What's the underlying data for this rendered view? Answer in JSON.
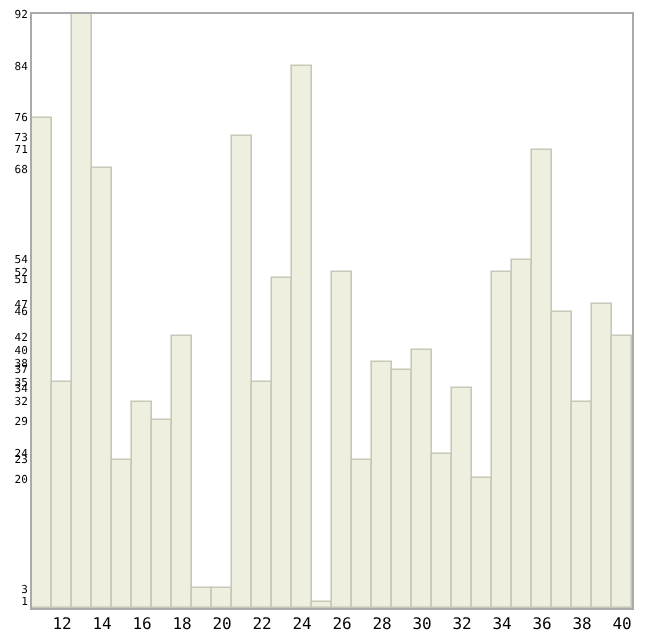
{
  "chart_data": {
    "type": "bar",
    "categories": [
      null,
      "12",
      null,
      "14",
      null,
      "16",
      null,
      "18",
      null,
      "20",
      null,
      "22",
      null,
      "24",
      null,
      "26",
      null,
      "28",
      null,
      "30",
      null,
      "32",
      null,
      "34",
      null,
      "36",
      null,
      "38",
      null,
      "40"
    ],
    "values": [
      76,
      35,
      92,
      68,
      23,
      32,
      29,
      42,
      3,
      3,
      73,
      35,
      51,
      84,
      1,
      52,
      23,
      38,
      37,
      40,
      24,
      34,
      20,
      52,
      54,
      71,
      46,
      32,
      47,
      42
    ],
    "color": "#efefdf",
    "ylim": [
      0,
      92
    ],
    "yticks": [
      1,
      3,
      20,
      23,
      24,
      29,
      32,
      34,
      35,
      37,
      38,
      40,
      42,
      46,
      47,
      51,
      52,
      54,
      68,
      71,
      73,
      76,
      84,
      92
    ]
  }
}
